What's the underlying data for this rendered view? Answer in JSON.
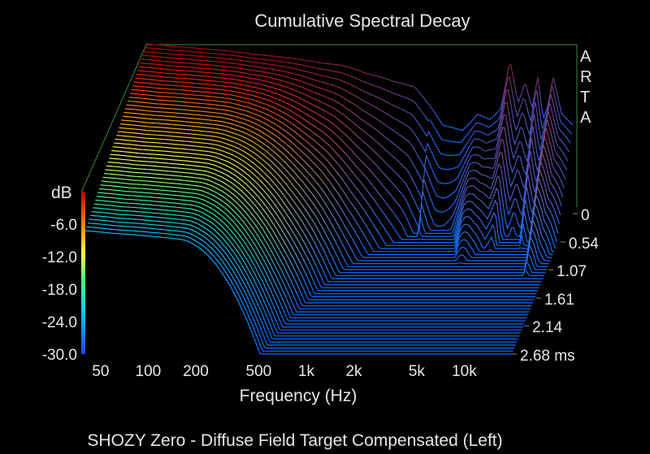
{
  "chart_data": {
    "type": "waterfall",
    "title": "Cumulative Spectral Decay",
    "subtitle": "SHOZY Zero - Diffuse Field Target Compensated (Left)",
    "brand": "ARTA",
    "xlabel": "Frequency (Hz)",
    "ylabel": "dB",
    "zlabel": "ms",
    "x_ticks": [
      "50",
      "100",
      "200",
      "500",
      "1k",
      "2k",
      "5k",
      "10k"
    ],
    "x_tick_values": [
      50,
      100,
      200,
      500,
      1000,
      2000,
      5000,
      10000
    ],
    "xlim": [
      40,
      20000
    ],
    "x_scale": "log",
    "y_ticks": [
      "-6.0",
      "-12.0",
      "-18.0",
      "-24.0",
      "-30.0"
    ],
    "y_tick_values": [
      -6,
      -12,
      -18,
      -24,
      -30
    ],
    "ylim": [
      -30,
      0
    ],
    "z_ticks": [
      "0",
      "0.54",
      "1.07",
      "1.61",
      "2.14",
      "2.68 ms"
    ],
    "z_tick_values": [
      0,
      0.54,
      1.07,
      1.61,
      2.14,
      2.68
    ],
    "zlim": [
      0,
      2.68
    ],
    "num_slices": 50,
    "initial_response": {
      "freq": [
        40,
        60,
        100,
        200,
        300,
        500,
        700,
        1000,
        1500,
        2000,
        3000,
        4000,
        5000,
        6000,
        7000,
        8000,
        9000,
        10000,
        11000,
        12000,
        13000,
        14000,
        15000,
        17000,
        20000
      ],
      "db": [
        0,
        -0.5,
        -1,
        -2,
        -2.5,
        -3.5,
        -4,
        -5.5,
        -7,
        -8,
        -15,
        -16,
        -13,
        -14,
        -12,
        -3,
        -11,
        -7,
        -12,
        -6,
        -14,
        -11,
        -6,
        -13,
        -15
      ]
    },
    "colorscale": [
      "#1060ff",
      "#00c0ff",
      "#40ff80",
      "#ffff40",
      "#ffa000",
      "#ff2000",
      "#b00000"
    ],
    "grid": false
  }
}
